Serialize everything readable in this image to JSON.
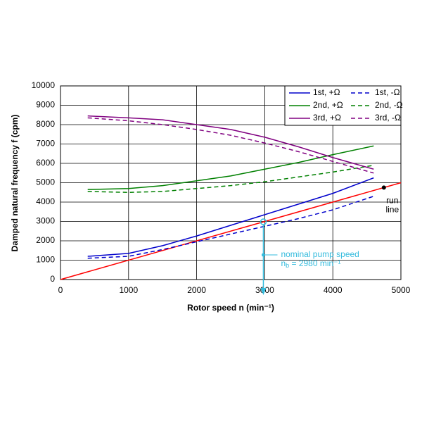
{
  "chart_data": {
    "type": "line",
    "x_label": "Rotor speed n (min⁻¹)",
    "y_label": "Damped natural frequency f (cpm)",
    "xlim": [
      0,
      5000
    ],
    "xticks": [
      0,
      1000,
      2000,
      3000,
      4000,
      5000
    ],
    "ylim": [
      0,
      10000
    ],
    "yticks": [
      0,
      1000,
      2000,
      3000,
      4000,
      5000,
      6000,
      7000,
      8000,
      9000,
      10000
    ],
    "grid": true,
    "legend": "top-right",
    "x": [
      400,
      1000,
      1500,
      2000,
      2500,
      3000,
      3500,
      4000,
      4600
    ],
    "series": [
      {
        "name": "1st, +Ω",
        "color": "#0000cc",
        "dashed": false,
        "values": [
          1200,
          1350,
          1750,
          2250,
          2800,
          3350,
          3900,
          4450,
          5250
        ]
      },
      {
        "name": "1st, -Ω",
        "color": "#0000cc",
        "dashed": true,
        "values": [
          1100,
          1200,
          1550,
          1950,
          2350,
          2750,
          3150,
          3600,
          4300
        ]
      },
      {
        "name": "2nd, +Ω",
        "color": "#008000",
        "dashed": false,
        "values": [
          4650,
          4700,
          4850,
          5100,
          5350,
          5700,
          6050,
          6450,
          6900
        ]
      },
      {
        "name": "2nd, -Ω",
        "color": "#008000",
        "dashed": true,
        "values": [
          4550,
          4500,
          4550,
          4700,
          4850,
          5050,
          5300,
          5550,
          5900
        ]
      },
      {
        "name": "3rd, +Ω",
        "color": "#800080",
        "dashed": false,
        "values": [
          8450,
          8350,
          8250,
          8000,
          7750,
          7350,
          6850,
          6300,
          5700
        ]
      },
      {
        "name": "3rd, -Ω",
        "color": "#800080",
        "dashed": true,
        "values": [
          8350,
          8200,
          8000,
          7750,
          7450,
          7050,
          6600,
          6100,
          5500
        ]
      }
    ],
    "run_line": {
      "color": "#ff0000",
      "x": [
        0,
        5000
      ],
      "values": [
        0,
        5000
      ],
      "label": [
        "run",
        "line"
      ],
      "marker_x": 4750
    },
    "nominal_speed": {
      "color": "#33bbdd",
      "x": 2980,
      "label": [
        "nominal pump speed",
        "n",
        "b",
        " = 2980 min⁻¹"
      ]
    }
  }
}
